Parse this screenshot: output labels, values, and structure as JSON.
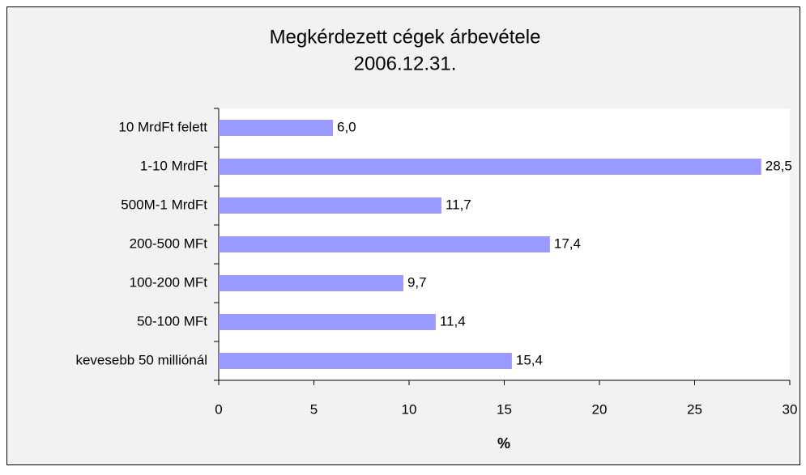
{
  "chart_data": {
    "type": "bar",
    "orientation": "horizontal",
    "title": [
      "Megkérdezett cégek árbevétele",
      "2006.12.31."
    ],
    "x_label": "%",
    "categories": [
      "10 MrdFt felett",
      "1-10 MrdFt",
      "500M-1 MrdFt",
      "200-500 MFt",
      "100-200 MFt",
      "50-100 MFt",
      "kevesebb 50 milliónál"
    ],
    "values": [
      6.0,
      28.5,
      11.7,
      17.4,
      9.7,
      11.4,
      15.4
    ],
    "value_labels": [
      "6,0",
      "28,5",
      "11,7",
      "17,4",
      "9,7",
      "11,4",
      "15,4"
    ],
    "color": "#9999ff",
    "xlim": [
      0,
      30
    ],
    "xticks": [
      0,
      5,
      10,
      15,
      20,
      25,
      30
    ],
    "grid": false
  }
}
